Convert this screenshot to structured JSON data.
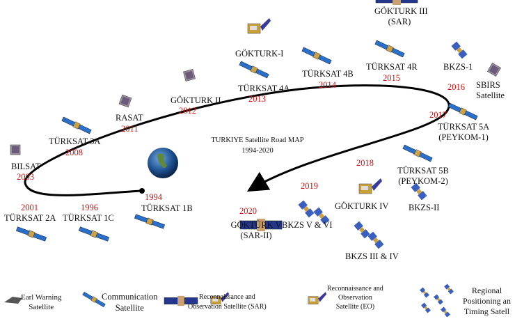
{
  "title": [
    "TURKIYE Satellite Road MAP",
    "1994-2020"
  ],
  "colors": {
    "year": "#d01010",
    "path": "#000000",
    "panel": "#2a4fa8"
  },
  "milestones": [
    {
      "name": "TÜRKSAT 1B",
      "year": "1994"
    },
    {
      "name": "TÜRKSAT 1C",
      "year": "1996"
    },
    {
      "name": "TÜRKSAT 2A",
      "year": "2001"
    },
    {
      "name": "BILSAT",
      "year": "2003"
    },
    {
      "name": "TÜRKSAT 3A",
      "year": "2008"
    },
    {
      "name": "RASAT",
      "year": "2011"
    },
    {
      "name": "GÖKTURK II",
      "year": "2012"
    },
    {
      "name": "GÖKTURK-I",
      "year": ""
    },
    {
      "name": "TÜRKSAT 4A",
      "year": "2013"
    },
    {
      "name": "TÜRKSAT 4B",
      "year": "2014"
    },
    {
      "name": "GÖKTURK III",
      "name2": "(SAR)",
      "year": ""
    },
    {
      "name": "TÜRKSAT 4R",
      "year": "2015"
    },
    {
      "name": "BKZS-1",
      "year": "2016"
    },
    {
      "name": "SBIRS",
      "name2": "Satellite",
      "year": ""
    },
    {
      "name": "TÜRKSAT 5A",
      "name2": "(PEYKOM-1)",
      "year": "2017"
    },
    {
      "name": "TÜRKSAT 5B",
      "name2": "(PEYKOM-2)",
      "year": ""
    },
    {
      "name": "BKZS-II",
      "year": ""
    },
    {
      "name": "GÖKTURK IV",
      "year": "2018"
    },
    {
      "name": "BKZS V & VI",
      "year": "2019"
    },
    {
      "name": "BKZS III & IV",
      "year": ""
    },
    {
      "name": "GÖKTÜRK V",
      "name2": "(SAR-II)",
      "year": "2020"
    }
  ],
  "legend": [
    {
      "icon": "early-warning-satellite-icon",
      "label": [
        "Earl Warning",
        "Satellite"
      ]
    },
    {
      "icon": "communication-satellite-icon",
      "label": [
        "Communication",
        "Satellite"
      ]
    },
    {
      "icon": "sar-satellite-icon",
      "label": [
        "Reconnaissance and",
        "Observation Satellite (SAR)"
      ]
    },
    {
      "icon": "eo-satellite-icon",
      "label": [
        "Reconnaissance and",
        "Observation",
        "Satellite (EO)"
      ]
    },
    {
      "icon": "positioning-satellite-icon",
      "label": [
        "Regional",
        "Positioning an",
        "Timing Satell"
      ]
    }
  ]
}
